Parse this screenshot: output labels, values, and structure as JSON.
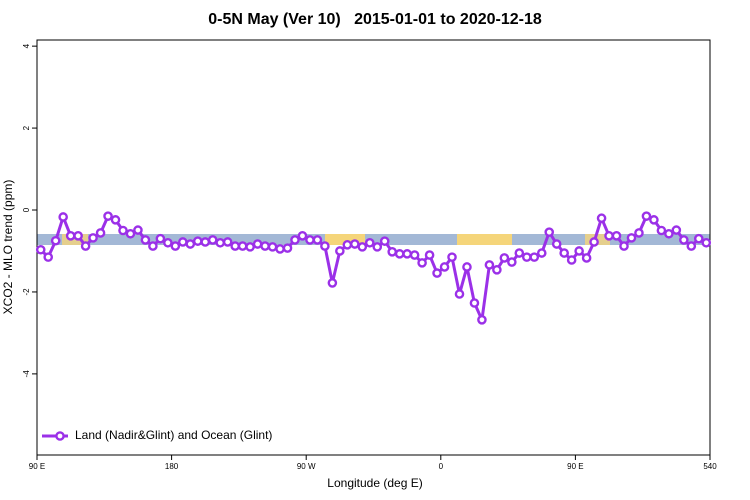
{
  "chart_data": {
    "type": "line",
    "title": "0-5N May (Ver 10)   2015-01-01 to 2020-12-18",
    "xlabel": "Longitude (deg E)",
    "ylabel": "XCO2 - MLO trend (ppm)",
    "x": [
      92.5,
      97.5,
      102.5,
      107.5,
      112.5,
      117.5,
      122.5,
      127.5,
      132.5,
      137.5,
      142.5,
      147.5,
      152.5,
      157.5,
      162.5,
      167.5,
      172.5,
      177.5,
      182.5,
      187.5,
      192.5,
      197.5,
      202.5,
      207.5,
      212.5,
      217.5,
      222.5,
      227.5,
      232.5,
      237.5,
      242.5,
      247.5,
      252.5,
      257.5,
      262.5,
      267.5,
      272.5,
      277.5,
      282.5,
      287.5,
      292.5,
      297.5,
      302.5,
      307.5,
      312.5,
      317.5,
      322.5,
      327.5,
      332.5,
      337.5,
      342.5,
      347.5,
      352.5,
      357.5,
      362.5,
      367.5,
      372.5,
      377.5,
      382.5,
      387.5,
      392.5,
      397.5,
      402.5,
      407.5,
      412.5,
      417.5,
      422.5,
      427.5,
      432.5,
      437.5,
      442.5,
      447.5,
      452.5,
      457.5,
      462.5,
      467.5,
      472.5,
      477.5,
      482.5,
      487.5,
      492.5,
      497.5,
      502.5,
      507.5,
      512.5,
      517.5,
      522.5,
      527.5,
      532.5,
      537.5
    ],
    "series": [
      {
        "name": "Land (Nadir&Glint) and Ocean (Glint)",
        "color": "#9b30e8",
        "values": [
          -0.97,
          -1.15,
          -0.75,
          -0.17,
          -0.63,
          -0.63,
          -0.88,
          -0.68,
          -0.56,
          -0.15,
          -0.24,
          -0.5,
          -0.58,
          -0.49,
          -0.73,
          -0.88,
          -0.7,
          -0.8,
          -0.88,
          -0.78,
          -0.83,
          -0.76,
          -0.78,
          -0.73,
          -0.8,
          -0.78,
          -0.88,
          -0.88,
          -0.9,
          -0.83,
          -0.88,
          -0.9,
          -0.95,
          -0.93,
          -0.73,
          -0.63,
          -0.73,
          -0.73,
          -0.88,
          -1.78,
          -1.0,
          -0.85,
          -0.83,
          -0.9,
          -0.8,
          -0.9,
          -0.76,
          -1.02,
          -1.07,
          -1.07,
          -1.1,
          -1.29,
          -1.1,
          -1.54,
          -1.39,
          -1.15,
          -2.05,
          -1.39,
          -2.27,
          -2.68,
          -1.34,
          -1.46,
          -1.17,
          -1.27,
          -1.05,
          -1.15,
          -1.15,
          -1.05,
          -0.54,
          -0.83,
          -1.05,
          -1.22,
          -1.0,
          -1.17,
          -0.78,
          -0.2,
          -0.63,
          -0.63,
          -0.88,
          -0.68,
          -0.56,
          -0.15,
          -0.24,
          -0.5,
          -0.58,
          -0.49,
          -0.73,
          -0.88,
          -0.7,
          -0.8
        ]
      }
    ],
    "xlim": [
      90,
      540
    ],
    "xticks": [
      {
        "value": 90,
        "label": "90 E"
      },
      180,
      {
        "value": 270,
        "label": "90 W"
      },
      {
        "value": 360,
        "label": "0"
      },
      {
        "value": 450,
        "label": "90 E"
      },
      540
    ],
    "ylim": [
      -5.98,
      4.15
    ],
    "yticks": [
      -4,
      -2,
      0,
      2,
      4
    ],
    "legend": "lower left"
  }
}
